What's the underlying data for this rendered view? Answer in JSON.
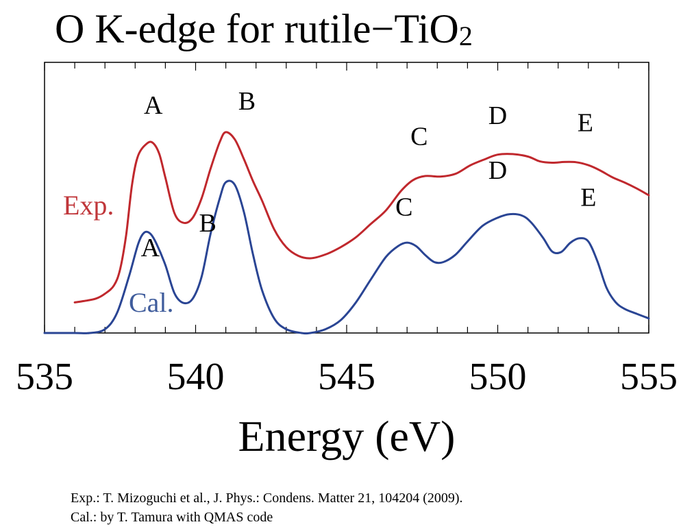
{
  "chart_data": {
    "type": "line",
    "title": {
      "main": "O K-edge for rutile−TiO",
      "sub": "2"
    },
    "xlabel": "Energy (eV)",
    "ylabel": "",
    "xlim": [
      535,
      555
    ],
    "ylim": [
      0,
      1
    ],
    "x_ticks": [
      535,
      540,
      545,
      550,
      555
    ],
    "x_tick_labels": [
      "535",
      "540",
      "545",
      "550",
      "555"
    ],
    "x_minor_step": 1,
    "grid": false,
    "series": [
      {
        "name": "Exp.",
        "color": "#c0282d",
        "label_color": "#c0363a",
        "points": [
          [
            536.0,
            0.113
          ],
          [
            536.3,
            0.118
          ],
          [
            536.7,
            0.127
          ],
          [
            537.0,
            0.145
          ],
          [
            537.3,
            0.176
          ],
          [
            537.5,
            0.235
          ],
          [
            537.7,
            0.361
          ],
          [
            537.9,
            0.551
          ],
          [
            538.1,
            0.656
          ],
          [
            538.4,
            0.701
          ],
          [
            538.6,
            0.701
          ],
          [
            538.8,
            0.661
          ],
          [
            539.0,
            0.574
          ],
          [
            539.3,
            0.443
          ],
          [
            539.6,
            0.407
          ],
          [
            539.9,
            0.425
          ],
          [
            540.2,
            0.498
          ],
          [
            540.5,
            0.609
          ],
          [
            540.8,
            0.706
          ],
          [
            541.0,
            0.742
          ],
          [
            541.3,
            0.715
          ],
          [
            541.6,
            0.642
          ],
          [
            541.9,
            0.561
          ],
          [
            542.2,
            0.489
          ],
          [
            542.6,
            0.383
          ],
          [
            543.0,
            0.317
          ],
          [
            543.4,
            0.285
          ],
          [
            543.8,
            0.276
          ],
          [
            544.3,
            0.29
          ],
          [
            544.8,
            0.317
          ],
          [
            545.3,
            0.353
          ],
          [
            545.8,
            0.403
          ],
          [
            546.3,
            0.453
          ],
          [
            546.8,
            0.525
          ],
          [
            547.2,
            0.565
          ],
          [
            547.6,
            0.58
          ],
          [
            548.1,
            0.578
          ],
          [
            548.6,
            0.588
          ],
          [
            549.1,
            0.62
          ],
          [
            549.6,
            0.643
          ],
          [
            550.0,
            0.659
          ],
          [
            550.5,
            0.661
          ],
          [
            551.0,
            0.652
          ],
          [
            551.4,
            0.634
          ],
          [
            551.8,
            0.629
          ],
          [
            552.2,
            0.632
          ],
          [
            552.6,
            0.631
          ],
          [
            553.0,
            0.62
          ],
          [
            553.4,
            0.6
          ],
          [
            553.8,
            0.575
          ],
          [
            554.2,
            0.556
          ],
          [
            554.6,
            0.534
          ],
          [
            555.0,
            0.509
          ]
        ]
      },
      {
        "name": "Cal.",
        "color": "#2a4594",
        "label_color": "#3f5c9c",
        "points": [
          [
            535.0,
            0.0
          ],
          [
            536.0,
            0.0
          ],
          [
            536.5,
            0.0
          ],
          [
            537.0,
            0.014
          ],
          [
            537.4,
            0.074
          ],
          [
            537.8,
            0.211
          ],
          [
            538.1,
            0.329
          ],
          [
            538.3,
            0.371
          ],
          [
            538.5,
            0.367
          ],
          [
            538.7,
            0.331
          ],
          [
            539.0,
            0.251
          ],
          [
            539.3,
            0.147
          ],
          [
            539.6,
            0.111
          ],
          [
            539.9,
            0.126
          ],
          [
            540.2,
            0.208
          ],
          [
            540.5,
            0.369
          ],
          [
            540.8,
            0.498
          ],
          [
            541.0,
            0.557
          ],
          [
            541.3,
            0.547
          ],
          [
            541.6,
            0.446
          ],
          [
            541.9,
            0.29
          ],
          [
            542.2,
            0.158
          ],
          [
            542.6,
            0.054
          ],
          [
            543.0,
            0.014
          ],
          [
            543.5,
            0.0
          ],
          [
            543.8,
            0.0
          ],
          [
            544.3,
            0.014
          ],
          [
            544.8,
            0.047
          ],
          [
            545.3,
            0.112
          ],
          [
            545.8,
            0.198
          ],
          [
            546.3,
            0.281
          ],
          [
            546.7,
            0.321
          ],
          [
            547.0,
            0.334
          ],
          [
            547.3,
            0.321
          ],
          [
            547.6,
            0.288
          ],
          [
            547.9,
            0.262
          ],
          [
            548.2,
            0.262
          ],
          [
            548.6,
            0.289
          ],
          [
            549.0,
            0.338
          ],
          [
            549.5,
            0.396
          ],
          [
            550.0,
            0.426
          ],
          [
            550.4,
            0.439
          ],
          [
            550.8,
            0.434
          ],
          [
            551.1,
            0.409
          ],
          [
            551.5,
            0.352
          ],
          [
            551.8,
            0.301
          ],
          [
            552.1,
            0.299
          ],
          [
            552.4,
            0.333
          ],
          [
            552.7,
            0.35
          ],
          [
            553.0,
            0.338
          ],
          [
            553.3,
            0.265
          ],
          [
            553.6,
            0.167
          ],
          [
            553.9,
            0.114
          ],
          [
            554.2,
            0.089
          ],
          [
            554.6,
            0.071
          ],
          [
            555.0,
            0.054
          ]
        ]
      }
    ],
    "annotations": [
      {
        "series": "Exp.",
        "text": "A",
        "x": 538.6,
        "y": 0.81
      },
      {
        "series": "Exp.",
        "text": "B",
        "x": 541.7,
        "y": 0.825
      },
      {
        "series": "Exp.",
        "text": "C",
        "x": 547.4,
        "y": 0.695
      },
      {
        "series": "Exp.",
        "text": "D",
        "x": 550.0,
        "y": 0.772
      },
      {
        "series": "Exp.",
        "text": "E",
        "x": 552.9,
        "y": 0.745
      },
      {
        "series": "Cal.",
        "text": "A",
        "x": 538.5,
        "y": 0.283
      },
      {
        "series": "Cal.",
        "text": "B",
        "x": 540.4,
        "y": 0.375
      },
      {
        "series": "Cal.",
        "text": "C",
        "x": 546.9,
        "y": 0.434
      },
      {
        "series": "Cal.",
        "text": "D",
        "x": 550.0,
        "y": 0.57
      },
      {
        "series": "Cal.",
        "text": "E",
        "x": 553.0,
        "y": 0.47
      }
    ]
  },
  "notes": [
    "Exp.: T. Mizoguchi et al., J. Phys.: Condens. Matter 21, 104204 (2009).",
    "Cal.: by T. Tamura with QMAS code"
  ]
}
